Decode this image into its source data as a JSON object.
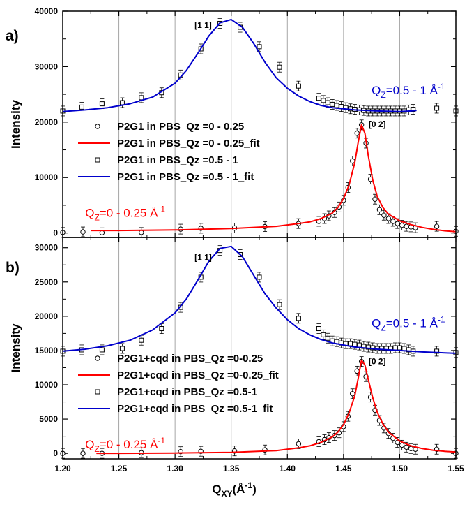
{
  "xaxis": {
    "label_main": "Q",
    "label_sub": "XY",
    "label_rest": "(Å",
    "label_sup": "-1",
    "label_close": ")",
    "min": 1.2,
    "max": 1.55,
    "ticks": [
      "1.20",
      "1.25",
      "1.30",
      "1.35",
      "1.40",
      "1.45",
      "1.50",
      "1.55"
    ]
  },
  "colors": {
    "fit_low": "#ff0000",
    "fit_high": "#0000cc",
    "grid": "#a6a6a6"
  },
  "chart_data": [
    {
      "type": "scatter",
      "panel_label": "a)",
      "ylabel": "Intensity",
      "ylim": [
        -800,
        40000
      ],
      "yticks": [
        "0",
        "10000",
        "20000",
        "30000",
        "40000"
      ],
      "grid": "vertical",
      "peak_labels": [
        {
          "text": "[1 1]",
          "x": 1.325,
          "y": 37000
        },
        {
          "text": "[0 2]",
          "x": 1.48,
          "y": 19100
        }
      ],
      "annotations": [
        {
          "main": "Q",
          "sub": "Z",
          "rest": "=0.5 - 1 Å",
          "sup": "-1",
          "color": "#0000cc",
          "x": 1.475,
          "y": 25000
        },
        {
          "main": "Q",
          "sub": "Z",
          "rest": "=0 - 0.25 Å",
          "sup": "-1",
          "color": "#ff0000",
          "x": 1.22,
          "y": 2900
        }
      ],
      "legend_position": "middle-left",
      "series": [
        {
          "name": "P2G1 in PBS_Qz =0 - 0.25",
          "kind": "markers",
          "marker": "circle",
          "x": [
            1.2,
            1.218,
            1.235,
            1.27,
            1.305,
            1.323,
            1.353,
            1.38,
            1.41,
            1.428,
            1.433,
            1.437,
            1.442,
            1.446,
            1.45,
            1.454,
            1.458,
            1.462,
            1.466,
            1.47,
            1.474,
            1.478,
            1.482,
            1.486,
            1.49,
            1.494,
            1.498,
            1.502,
            1.506,
            1.51,
            1.514,
            1.533,
            1.55
          ],
          "y": [
            100,
            200,
            50,
            100,
            700,
            850,
            900,
            1150,
            1700,
            2100,
            2600,
            3100,
            3700,
            4700,
            5900,
            8200,
            13000,
            18000,
            19500,
            16200,
            9700,
            6100,
            4200,
            3200,
            2600,
            2100,
            1700,
            1400,
            1200,
            1100,
            950,
            1200,
            300
          ]
        },
        {
          "name": "P2G1 in PBS_Qz =0 - 0.25_fit",
          "kind": "line",
          "color": "#ff0000",
          "x": [
            1.225,
            1.25,
            1.3,
            1.35,
            1.39,
            1.41,
            1.42,
            1.43,
            1.44,
            1.445,
            1.45,
            1.455,
            1.46,
            1.463,
            1.466,
            1.469,
            1.472,
            1.476,
            1.48,
            1.485,
            1.49,
            1.5,
            1.51,
            1.52,
            1.53,
            1.54,
            1.55
          ],
          "y": [
            450,
            450,
            550,
            800,
            1200,
            1700,
            2000,
            2600,
            3600,
            4600,
            6200,
            8700,
            12700,
            16300,
            19500,
            18000,
            14000,
            9500,
            6600,
            4600,
            3400,
            2200,
            1500,
            1000,
            650,
            400,
            250
          ]
        },
        {
          "name": "P2G1 in PBS_Qz =0.5 - 1",
          "kind": "markers",
          "marker": "square",
          "x": [
            1.2,
            1.217,
            1.235,
            1.253,
            1.27,
            1.288,
            1.305,
            1.323,
            1.34,
            1.358,
            1.375,
            1.393,
            1.41,
            1.428,
            1.432,
            1.436,
            1.44,
            1.444,
            1.448,
            1.452,
            1.456,
            1.46,
            1.464,
            1.468,
            1.472,
            1.476,
            1.48,
            1.484,
            1.488,
            1.492,
            1.496,
            1.5,
            1.504,
            1.508,
            1.512,
            1.533,
            1.55
          ],
          "y": [
            22000,
            22700,
            23300,
            23500,
            24400,
            25300,
            28500,
            33200,
            37800,
            37100,
            33600,
            29900,
            26500,
            24300,
            23900,
            23500,
            23200,
            23000,
            22800,
            22600,
            22400,
            22300,
            22200,
            22100,
            22000,
            22000,
            22000,
            22000,
            22000,
            22000,
            22000,
            22000,
            22000,
            22200,
            22300,
            22500,
            22000
          ]
        },
        {
          "name": "P2G1 in PBS_Qz =0.5 - 1_fit",
          "kind": "line",
          "color": "#0000cc",
          "x": [
            1.2,
            1.22,
            1.24,
            1.26,
            1.28,
            1.3,
            1.31,
            1.32,
            1.33,
            1.34,
            1.35,
            1.36,
            1.37,
            1.38,
            1.39,
            1.4,
            1.41,
            1.42,
            1.43,
            1.44,
            1.46,
            1.48,
            1.5,
            1.51,
            1.515
          ],
          "y": [
            21900,
            22200,
            22600,
            23300,
            24500,
            27000,
            29300,
            32300,
            35500,
            37900,
            38500,
            37100,
            34200,
            30800,
            28000,
            26100,
            24700,
            23700,
            23000,
            22600,
            22200,
            22000,
            21900,
            22000,
            22100
          ]
        }
      ]
    },
    {
      "type": "scatter",
      "panel_label": "b)",
      "ylabel": "Intensity",
      "ylim": [
        -800,
        31500
      ],
      "yticks": [
        "0",
        "5000",
        "10000",
        "15000",
        "20000",
        "25000",
        "30000"
      ],
      "grid": "vertical",
      "peak_labels": [
        {
          "text": "[1 1]",
          "x": 1.325,
          "y": 28200
        },
        {
          "text": "[0 2]",
          "x": 1.48,
          "y": 13000
        }
      ],
      "annotations": [
        {
          "main": "Q",
          "sub": "Z",
          "rest": "=0.5 - 1 Å",
          "sup": "-1",
          "color": "#0000cc",
          "x": 1.475,
          "y": 18400
        },
        {
          "main": "Q",
          "sub": "Z",
          "rest": "=0 - 0.25 Å",
          "sup": "-1",
          "color": "#ff0000",
          "x": 1.22,
          "y": 750
        }
      ],
      "legend_position": "middle-left",
      "series": [
        {
          "name": "P2G1+cqd in PBS_Qz =0-0.25",
          "kind": "markers",
          "marker": "circle",
          "x": [
            1.2,
            1.218,
            1.235,
            1.27,
            1.305,
            1.323,
            1.353,
            1.38,
            1.41,
            1.428,
            1.433,
            1.437,
            1.442,
            1.446,
            1.45,
            1.454,
            1.458,
            1.462,
            1.466,
            1.47,
            1.474,
            1.478,
            1.482,
            1.486,
            1.49,
            1.494,
            1.498,
            1.502,
            1.506,
            1.51,
            1.514,
            1.533,
            1.55
          ],
          "y": [
            0,
            0,
            0,
            100,
            250,
            300,
            350,
            500,
            1400,
            1700,
            2000,
            2300,
            2600,
            3000,
            3900,
            5400,
            8700,
            12000,
            13400,
            11200,
            8200,
            6300,
            4800,
            3700,
            2900,
            2200,
            1600,
            1200,
            900,
            700,
            600,
            600,
            0
          ]
        },
        {
          "name": "P2G1+cqd in PBS_Qz =0-0.25_fit",
          "kind": "line",
          "color": "#ff0000",
          "x": [
            1.23,
            1.25,
            1.3,
            1.35,
            1.39,
            1.41,
            1.42,
            1.43,
            1.44,
            1.445,
            1.45,
            1.455,
            1.46,
            1.463,
            1.466,
            1.469,
            1.472,
            1.476,
            1.48,
            1.485,
            1.49,
            1.5,
            1.51,
            1.52,
            1.53,
            1.54,
            1.55
          ],
          "y": [
            0,
            0,
            50,
            150,
            400,
            800,
            1100,
            1600,
            2400,
            3100,
            4200,
            5900,
            8400,
            10900,
            13600,
            12900,
            10800,
            8100,
            6000,
            4300,
            3100,
            1800,
            1100,
            700,
            450,
            300,
            200
          ]
        },
        {
          "name": "P2G1+cqd in PBS_Qz =0.5-1",
          "kind": "markers",
          "marker": "square",
          "x": [
            1.2,
            1.217,
            1.235,
            1.253,
            1.27,
            1.288,
            1.305,
            1.323,
            1.34,
            1.358,
            1.375,
            1.393,
            1.41,
            1.428,
            1.432,
            1.436,
            1.44,
            1.444,
            1.448,
            1.452,
            1.456,
            1.46,
            1.464,
            1.468,
            1.472,
            1.476,
            1.48,
            1.484,
            1.488,
            1.492,
            1.496,
            1.5,
            1.504,
            1.508,
            1.512,
            1.533,
            1.55
          ],
          "y": [
            14900,
            15100,
            15100,
            15300,
            16500,
            18200,
            21300,
            25700,
            29600,
            29000,
            25700,
            21700,
            19700,
            18200,
            17300,
            16800,
            16400,
            16300,
            16100,
            16000,
            16000,
            15900,
            15800,
            15600,
            15500,
            15400,
            15300,
            15300,
            15300,
            15300,
            15400,
            15400,
            15300,
            15100,
            14900,
            14900,
            14700
          ]
        },
        {
          "name": "P2G1+cqd in PBS_Qz =0.5-1_fit",
          "kind": "line",
          "color": "#0000cc",
          "x": [
            1.2,
            1.22,
            1.24,
            1.26,
            1.28,
            1.3,
            1.31,
            1.32,
            1.33,
            1.34,
            1.35,
            1.36,
            1.37,
            1.38,
            1.39,
            1.4,
            1.41,
            1.42,
            1.43,
            1.44,
            1.46,
            1.48,
            1.5,
            1.52,
            1.55
          ],
          "y": [
            14900,
            15200,
            15700,
            16500,
            18000,
            20500,
            22500,
            25200,
            28000,
            29900,
            30200,
            28700,
            26000,
            23300,
            21200,
            19500,
            18200,
            17300,
            16600,
            16100,
            15500,
            15200,
            15000,
            14800,
            14600
          ]
        }
      ]
    }
  ]
}
